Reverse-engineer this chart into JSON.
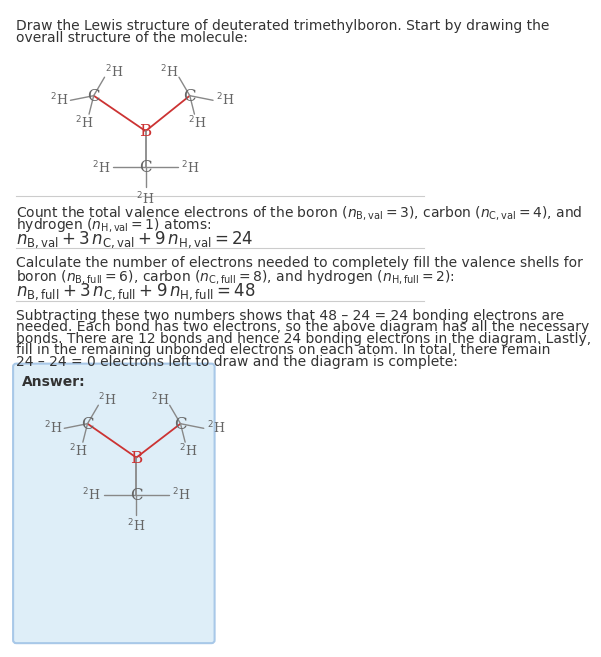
{
  "title_text": "Draw the Lewis structure of deuterated trimethylboron. Start by drawing the\noverall structure of the molecule:",
  "section1_line1": "Count the total valence electrons of the boron ($n_\\mathrm{B,val} = 3$), carbon ($n_\\mathrm{C,val} = 4$), and",
  "section1_line2": "hydrogen ($n_\\mathrm{H,val} = 1$) atoms:",
  "section1_eq": "$n_\\mathrm{B,val} + 3\\,n_\\mathrm{C,val} + 9\\,n_\\mathrm{H,val} = 24$",
  "section2_line1": "Calculate the number of electrons needed to completely fill the valence shells for",
  "section2_line2": "boron ($n_\\mathrm{B,full} = 6$), carbon ($n_\\mathrm{C,full} = 8$), and hydrogen ($n_\\mathrm{H,full} = 2$):",
  "section2_eq": "$n_\\mathrm{B,full} + 3\\,n_\\mathrm{C,full} + 9\\,n_\\mathrm{H,full} = 48$",
  "section3_line1": "Subtracting these two numbers shows that 48 – 24 = 24 bonding electrons are",
  "section3_line2": "needed. Each bond has two electrons, so the above diagram has all the necessary",
  "section3_line3": "bonds. There are 12 bonds and hence 24 bonding electrons in the diagram. Lastly,",
  "section3_line4": "fill in the remaining unbonded electrons on each atom. In total, there remain",
  "section3_line5": "24 – 24 = 0 electrons left to draw and the diagram is complete:",
  "answer_label": "Answer:",
  "bg_color": "#ffffff",
  "answer_box_color": "#deeef8",
  "answer_box_border": "#a8c8e8",
  "sep_color": "#cccccc",
  "bond_color_top": "#cc3333",
  "bond_color_gray": "#888888",
  "C_color": "#666666",
  "B_color": "#cc3333",
  "H_color": "#666666",
  "text_color": "#333333",
  "title_fontsize": 10,
  "body_fontsize": 10,
  "eq_fontsize": 12,
  "answer_fontsize": 10
}
